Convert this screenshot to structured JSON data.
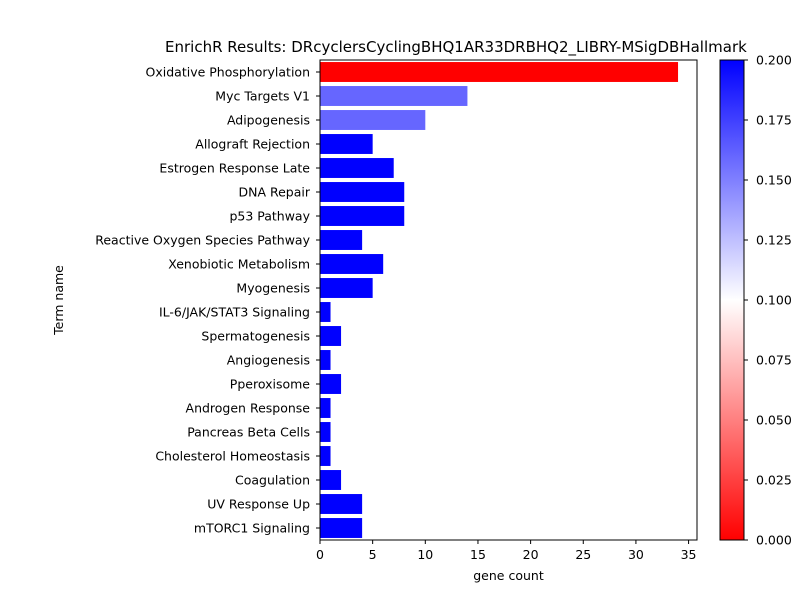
{
  "chart_data": {
    "type": "bar",
    "orientation": "horizontal",
    "title": "EnrichR Results: DRcyclersCyclingBHQ1AR33DRBHQ2_LIBRY-MSigDBHallmark",
    "xlabel": "gene count",
    "ylabel": "Term name",
    "xlim": [
      0,
      35.8
    ],
    "xticks": [
      0,
      5,
      10,
      15,
      20,
      25,
      30,
      35
    ],
    "grid": false,
    "categories": [
      "Oxidative Phosphorylation",
      "Myc Targets V1",
      "Adipogenesis",
      "Allograft Rejection",
      "Estrogen Response Late",
      "DNA Repair",
      "p53 Pathway",
      "Reactive Oxygen Species Pathway",
      "Xenobiotic Metabolism",
      "Myogenesis",
      "IL-6/JAK/STAT3 Signaling",
      "Spermatogenesis",
      "Angiogenesis",
      "Pperoxisome",
      "Androgen Response",
      "Pancreas Beta Cells",
      "Cholesterol Homeostasis",
      "Coagulation",
      "UV Response Up",
      "mTORC1 Signaling"
    ],
    "values": [
      34,
      14,
      10,
      5,
      7,
      8,
      8,
      4,
      6,
      5,
      1,
      2,
      1,
      2,
      1,
      1,
      1,
      2,
      4,
      4
    ],
    "color_values": [
      0.0,
      0.16,
      0.16,
      0.2,
      0.2,
      0.2,
      0.2,
      0.2,
      0.2,
      0.2,
      0.2,
      0.2,
      0.2,
      0.2,
      0.2,
      0.2,
      0.2,
      0.2,
      0.2,
      0.2
    ],
    "colorbar": {
      "colormap": "bwr_r",
      "range": [
        0.0,
        0.2
      ],
      "colors": [
        "#ff0000",
        "#ffffff",
        "#0000ff"
      ],
      "ticks": [
        "0.000",
        "0.025",
        "0.050",
        "0.075",
        "0.100",
        "0.125",
        "0.150",
        "0.175",
        "0.200"
      ],
      "tick_values": [
        0.0,
        0.025,
        0.05,
        0.075,
        0.1,
        0.125,
        0.15,
        0.175,
        0.2
      ]
    }
  }
}
